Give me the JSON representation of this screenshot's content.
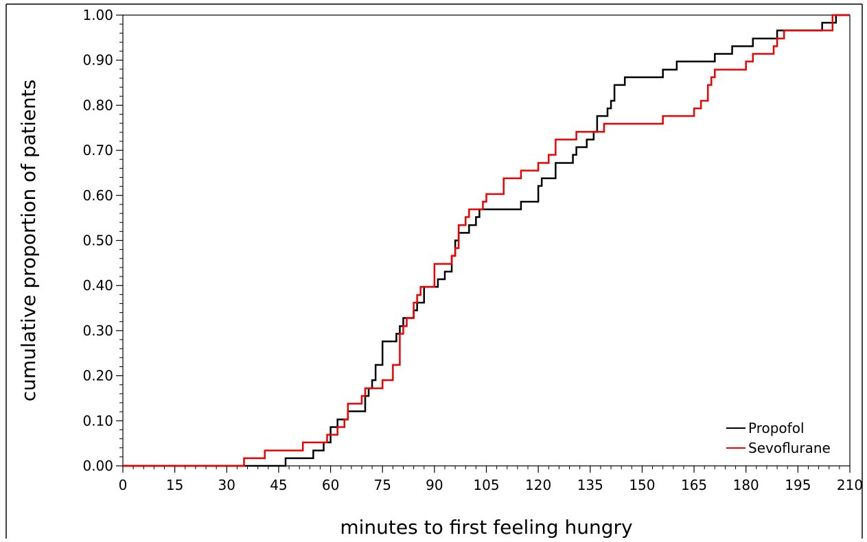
{
  "chart_data": {
    "type": "line",
    "subtype": "step",
    "title": "",
    "xlabel": "minutes to first feeling hungry",
    "ylabel": "cumulative proportion of patients",
    "xlim": [
      0,
      210
    ],
    "ylim": [
      0,
      1
    ],
    "xticks": [
      0,
      15,
      30,
      45,
      60,
      75,
      90,
      105,
      120,
      135,
      150,
      165,
      180,
      195,
      210
    ],
    "yticks": [
      0.0,
      0.1,
      0.2,
      0.3,
      0.4,
      0.5,
      0.6,
      0.7,
      0.8,
      0.9,
      1.0
    ],
    "xtick_labels": [
      "0",
      "15",
      "30",
      "45",
      "60",
      "75",
      "90",
      "105",
      "120",
      "135",
      "150",
      "165",
      "180",
      "195",
      "210"
    ],
    "ytick_labels": [
      "0.00",
      "0.10",
      "0.20",
      "0.30",
      "0.40",
      "0.50",
      "0.60",
      "0.70",
      "0.80",
      "0.90",
      "1.00"
    ],
    "grid": false,
    "legend_position": "bottom-right",
    "series": [
      {
        "name": "Propofol",
        "color": "#000000",
        "points": [
          [
            0,
            0
          ],
          [
            47,
            0
          ],
          [
            47,
            0.017
          ],
          [
            55,
            0.017
          ],
          [
            55,
            0.034
          ],
          [
            58,
            0.034
          ],
          [
            58,
            0.052
          ],
          [
            60,
            0.052
          ],
          [
            60,
            0.086
          ],
          [
            62,
            0.086
          ],
          [
            62,
            0.103
          ],
          [
            64,
            0.103
          ],
          [
            65,
            0.103
          ],
          [
            65,
            0.121
          ],
          [
            68,
            0.121
          ],
          [
            68,
            0.121
          ],
          [
            70,
            0.121
          ],
          [
            70,
            0.155
          ],
          [
            71,
            0.155
          ],
          [
            71,
            0.172
          ],
          [
            72,
            0.172
          ],
          [
            72,
            0.19
          ],
          [
            73,
            0.19
          ],
          [
            73,
            0.224
          ],
          [
            75,
            0.224
          ],
          [
            75,
            0.276
          ],
          [
            79,
            0.276
          ],
          [
            79,
            0.293
          ],
          [
            80,
            0.293
          ],
          [
            80,
            0.31
          ],
          [
            81,
            0.31
          ],
          [
            81,
            0.328
          ],
          [
            84,
            0.328
          ],
          [
            84,
            0.345
          ],
          [
            85,
            0.345
          ],
          [
            85,
            0.362
          ],
          [
            87,
            0.362
          ],
          [
            87,
            0.397
          ],
          [
            91,
            0.397
          ],
          [
            91,
            0.414
          ],
          [
            93,
            0.414
          ],
          [
            93,
            0.431
          ],
          [
            95,
            0.431
          ],
          [
            95,
            0.466
          ],
          [
            96,
            0.466
          ],
          [
            96,
            0.5
          ],
          [
            97,
            0.5
          ],
          [
            97,
            0.517
          ],
          [
            100,
            0.517
          ],
          [
            100,
            0.534
          ],
          [
            102,
            0.534
          ],
          [
            102,
            0.552
          ],
          [
            103,
            0.552
          ],
          [
            103,
            0.569
          ],
          [
            115,
            0.569
          ],
          [
            115,
            0.586
          ],
          [
            120,
            0.586
          ],
          [
            120,
            0.621
          ],
          [
            121,
            0.621
          ],
          [
            121,
            0.638
          ],
          [
            125,
            0.638
          ],
          [
            125,
            0.672
          ],
          [
            130,
            0.672
          ],
          [
            130,
            0.69
          ],
          [
            131,
            0.69
          ],
          [
            131,
            0.707
          ],
          [
            134,
            0.707
          ],
          [
            134,
            0.724
          ],
          [
            136,
            0.724
          ],
          [
            136,
            0.741
          ],
          [
            137,
            0.741
          ],
          [
            137,
            0.776
          ],
          [
            140,
            0.776
          ],
          [
            140,
            0.793
          ],
          [
            141,
            0.793
          ],
          [
            141,
            0.81
          ],
          [
            142,
            0.81
          ],
          [
            142,
            0.845
          ],
          [
            145,
            0.845
          ],
          [
            145,
            0.862
          ],
          [
            156,
            0.862
          ],
          [
            156,
            0.879
          ],
          [
            160,
            0.879
          ],
          [
            160,
            0.897
          ],
          [
            171,
            0.897
          ],
          [
            171,
            0.914
          ],
          [
            176,
            0.914
          ],
          [
            176,
            0.931
          ],
          [
            182,
            0.931
          ],
          [
            182,
            0.948
          ],
          [
            189,
            0.948
          ],
          [
            189,
            0.966
          ],
          [
            202,
            0.966
          ],
          [
            202,
            0.983
          ],
          [
            206,
            0.983
          ],
          [
            206,
            1.0
          ],
          [
            210,
            1.0
          ]
        ]
      },
      {
        "name": "Sevoflurane",
        "color": "#ee0000",
        "points": [
          [
            0,
            0
          ],
          [
            35,
            0
          ],
          [
            35,
            0.017
          ],
          [
            41,
            0.017
          ],
          [
            41,
            0.034
          ],
          [
            52,
            0.034
          ],
          [
            52,
            0.052
          ],
          [
            59,
            0.052
          ],
          [
            59,
            0.069
          ],
          [
            62,
            0.069
          ],
          [
            62,
            0.086
          ],
          [
            64,
            0.086
          ],
          [
            64,
            0.103
          ],
          [
            65,
            0.103
          ],
          [
            65,
            0.138
          ],
          [
            69,
            0.138
          ],
          [
            69,
            0.155
          ],
          [
            70,
            0.155
          ],
          [
            70,
            0.172
          ],
          [
            75,
            0.172
          ],
          [
            75,
            0.19
          ],
          [
            78,
            0.19
          ],
          [
            78,
            0.224
          ],
          [
            80,
            0.224
          ],
          [
            80,
            0.293
          ],
          [
            81,
            0.293
          ],
          [
            81,
            0.31
          ],
          [
            82,
            0.31
          ],
          [
            82,
            0.328
          ],
          [
            84,
            0.328
          ],
          [
            84,
            0.362
          ],
          [
            85,
            0.362
          ],
          [
            85,
            0.379
          ],
          [
            86,
            0.379
          ],
          [
            86,
            0.397
          ],
          [
            90,
            0.397
          ],
          [
            90,
            0.448
          ],
          [
            95,
            0.448
          ],
          [
            95,
            0.466
          ],
          [
            96,
            0.466
          ],
          [
            96,
            0.483
          ],
          [
            97,
            0.483
          ],
          [
            97,
            0.534
          ],
          [
            99,
            0.534
          ],
          [
            99,
            0.552
          ],
          [
            100,
            0.552
          ],
          [
            100,
            0.569
          ],
          [
            104,
            0.569
          ],
          [
            104,
            0.586
          ],
          [
            105,
            0.586
          ],
          [
            105,
            0.603
          ],
          [
            110,
            0.603
          ],
          [
            110,
            0.638
          ],
          [
            115,
            0.638
          ],
          [
            115,
            0.655
          ],
          [
            120,
            0.655
          ],
          [
            120,
            0.672
          ],
          [
            123,
            0.672
          ],
          [
            123,
            0.69
          ],
          [
            125,
            0.69
          ],
          [
            125,
            0.724
          ],
          [
            131,
            0.724
          ],
          [
            131,
            0.741
          ],
          [
            139,
            0.741
          ],
          [
            139,
            0.759
          ],
          [
            156,
            0.759
          ],
          [
            156,
            0.776
          ],
          [
            165,
            0.776
          ],
          [
            165,
            0.793
          ],
          [
            167,
            0.793
          ],
          [
            167,
            0.81
          ],
          [
            169,
            0.81
          ],
          [
            169,
            0.845
          ],
          [
            170,
            0.845
          ],
          [
            170,
            0.862
          ],
          [
            171,
            0.862
          ],
          [
            171,
            0.879
          ],
          [
            180,
            0.879
          ],
          [
            180,
            0.897
          ],
          [
            182,
            0.897
          ],
          [
            182,
            0.914
          ],
          [
            188,
            0.914
          ],
          [
            188,
            0.931
          ],
          [
            189,
            0.931
          ],
          [
            189,
            0.948
          ],
          [
            191,
            0.948
          ],
          [
            191,
            0.966
          ],
          [
            205,
            0.966
          ],
          [
            205,
            1.0
          ],
          [
            210,
            1.0
          ]
        ]
      }
    ]
  }
}
